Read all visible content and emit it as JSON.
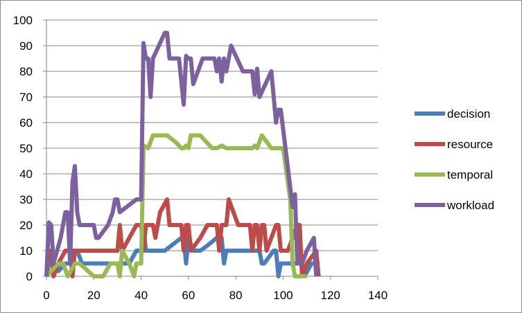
{
  "chart_data": {
    "type": "line",
    "title": "",
    "xlabel": "",
    "ylabel": "",
    "xlim": [
      0,
      140
    ],
    "ylim": [
      0,
      100
    ],
    "x_ticks": [
      0,
      20,
      40,
      60,
      80,
      100,
      120,
      140
    ],
    "y_ticks": [
      0,
      10,
      20,
      30,
      40,
      50,
      60,
      70,
      80,
      90,
      100
    ],
    "grid": "horizontal",
    "legend_position": "right",
    "series": [
      {
        "name": "decision",
        "color": "#4a7ebb",
        "points": [
          [
            0,
            0
          ],
          [
            1,
            5
          ],
          [
            3,
            5
          ],
          [
            5,
            2
          ],
          [
            8,
            5
          ],
          [
            10,
            5
          ],
          [
            11,
            10
          ],
          [
            13,
            10
          ],
          [
            15,
            5
          ],
          [
            20,
            5
          ],
          [
            30,
            5
          ],
          [
            35,
            5
          ],
          [
            38,
            10
          ],
          [
            40,
            10
          ],
          [
            41,
            20
          ],
          [
            42,
            10
          ],
          [
            50,
            10
          ],
          [
            57,
            15
          ],
          [
            58,
            15
          ],
          [
            59,
            5
          ],
          [
            60,
            15
          ],
          [
            62,
            10
          ],
          [
            65,
            10
          ],
          [
            68,
            12
          ],
          [
            72,
            15
          ],
          [
            74,
            15
          ],
          [
            75,
            5
          ],
          [
            76,
            10
          ],
          [
            80,
            10
          ],
          [
            88,
            10
          ],
          [
            90,
            10
          ],
          [
            91,
            5
          ],
          [
            92,
            5
          ],
          [
            96,
            10
          ],
          [
            97,
            10
          ],
          [
            98,
            0
          ],
          [
            99,
            5
          ],
          [
            108,
            5
          ],
          [
            109,
            0
          ],
          [
            112,
            5
          ],
          [
            114,
            5
          ],
          [
            115,
            0
          ]
        ]
      },
      {
        "name": "resource",
        "color": "#be4b48",
        "points": [
          [
            0,
            0
          ],
          [
            1,
            10
          ],
          [
            2,
            10
          ],
          [
            3,
            0
          ],
          [
            5,
            5
          ],
          [
            8,
            10
          ],
          [
            10,
            10
          ],
          [
            11,
            0
          ],
          [
            12,
            10
          ],
          [
            13,
            10
          ],
          [
            20,
            10
          ],
          [
            30,
            10
          ],
          [
            31,
            20
          ],
          [
            32,
            10
          ],
          [
            35,
            15
          ],
          [
            38,
            20
          ],
          [
            40,
            20
          ],
          [
            41,
            10
          ],
          [
            42,
            20
          ],
          [
            45,
            20
          ],
          [
            46,
            15
          ],
          [
            48,
            25
          ],
          [
            51,
            30
          ],
          [
            52,
            20
          ],
          [
            55,
            20
          ],
          [
            57,
            20
          ],
          [
            58,
            10
          ],
          [
            59,
            20
          ],
          [
            60,
            20
          ],
          [
            61,
            10
          ],
          [
            65,
            15
          ],
          [
            68,
            20
          ],
          [
            72,
            20
          ],
          [
            73,
            10
          ],
          [
            74,
            20
          ],
          [
            76,
            20
          ],
          [
            77,
            30
          ],
          [
            81,
            20
          ],
          [
            85,
            20
          ],
          [
            86,
            20
          ],
          [
            87,
            10
          ],
          [
            88,
            20
          ],
          [
            89,
            20
          ],
          [
            90,
            10
          ],
          [
            91,
            20
          ],
          [
            92,
            20
          ],
          [
            93,
            10
          ],
          [
            97,
            20
          ],
          [
            98,
            20
          ],
          [
            99,
            10
          ],
          [
            102,
            10
          ],
          [
            106,
            20
          ],
          [
            107,
            20
          ],
          [
            108,
            0
          ],
          [
            110,
            5
          ],
          [
            114,
            10
          ],
          [
            115,
            0
          ]
        ]
      },
      {
        "name": "temporal",
        "color": "#98b954",
        "points": [
          [
            0,
            0
          ],
          [
            5,
            5
          ],
          [
            7,
            5
          ],
          [
            9,
            0
          ],
          [
            12,
            5
          ],
          [
            14,
            5
          ],
          [
            20,
            0
          ],
          [
            24,
            0
          ],
          [
            27,
            5
          ],
          [
            30,
            5
          ],
          [
            31,
            0
          ],
          [
            32,
            10
          ],
          [
            35,
            5
          ],
          [
            37,
            0
          ],
          [
            38,
            5
          ],
          [
            40,
            5
          ],
          [
            41,
            51
          ],
          [
            43,
            50
          ],
          [
            45,
            55
          ],
          [
            50,
            55
          ],
          [
            51,
            55
          ],
          [
            55,
            52
          ],
          [
            57,
            50
          ],
          [
            58,
            50
          ],
          [
            59,
            51
          ],
          [
            60,
            50
          ],
          [
            61,
            55
          ],
          [
            65,
            55
          ],
          [
            70,
            50
          ],
          [
            72,
            50
          ],
          [
            74,
            51
          ],
          [
            76,
            50
          ],
          [
            80,
            50
          ],
          [
            85,
            50
          ],
          [
            87,
            50
          ],
          [
            88,
            51
          ],
          [
            89,
            50
          ],
          [
            91,
            55
          ],
          [
            95,
            50
          ],
          [
            98,
            50
          ],
          [
            100,
            50
          ],
          [
            103,
            30
          ],
          [
            104,
            5
          ],
          [
            105,
            0
          ],
          [
            110,
            0
          ]
        ]
      },
      {
        "name": "workload",
        "color": "#7d60a0",
        "points": [
          [
            0,
            0
          ],
          [
            1,
            21
          ],
          [
            2,
            20
          ],
          [
            3,
            5
          ],
          [
            6,
            15
          ],
          [
            8,
            25
          ],
          [
            9,
            25
          ],
          [
            10,
            5
          ],
          [
            11,
            37
          ],
          [
            12,
            43
          ],
          [
            13,
            25
          ],
          [
            14,
            20
          ],
          [
            15,
            20
          ],
          [
            20,
            20
          ],
          [
            21,
            15
          ],
          [
            22,
            15
          ],
          [
            26,
            20
          ],
          [
            28,
            25
          ],
          [
            29,
            30
          ],
          [
            30,
            30
          ],
          [
            31,
            25
          ],
          [
            38,
            30
          ],
          [
            40,
            30
          ],
          [
            41,
            91
          ],
          [
            42,
            85
          ],
          [
            43,
            85
          ],
          [
            44,
            70
          ],
          [
            45,
            85
          ],
          [
            50,
            95
          ],
          [
            51,
            95
          ],
          [
            52,
            85
          ],
          [
            56,
            85
          ],
          [
            58,
            67
          ],
          [
            59,
            86
          ],
          [
            60,
            85
          ],
          [
            61,
            85
          ],
          [
            62,
            75
          ],
          [
            66,
            85
          ],
          [
            70,
            85
          ],
          [
            71,
            85
          ],
          [
            72,
            80
          ],
          [
            73,
            85
          ],
          [
            74,
            76
          ],
          [
            75,
            85
          ],
          [
            76,
            80
          ],
          [
            78,
            90
          ],
          [
            83,
            80
          ],
          [
            86,
            80
          ],
          [
            87,
            80
          ],
          [
            88,
            71
          ],
          [
            89,
            81
          ],
          [
            90,
            70
          ],
          [
            95,
            80
          ],
          [
            97,
            60
          ],
          [
            98,
            65
          ],
          [
            99,
            65
          ],
          [
            101,
            50
          ],
          [
            104,
            27
          ],
          [
            105,
            32
          ],
          [
            106,
            5
          ],
          [
            108,
            5
          ],
          [
            110,
            10
          ],
          [
            113,
            15
          ],
          [
            114,
            0
          ]
        ]
      }
    ]
  }
}
